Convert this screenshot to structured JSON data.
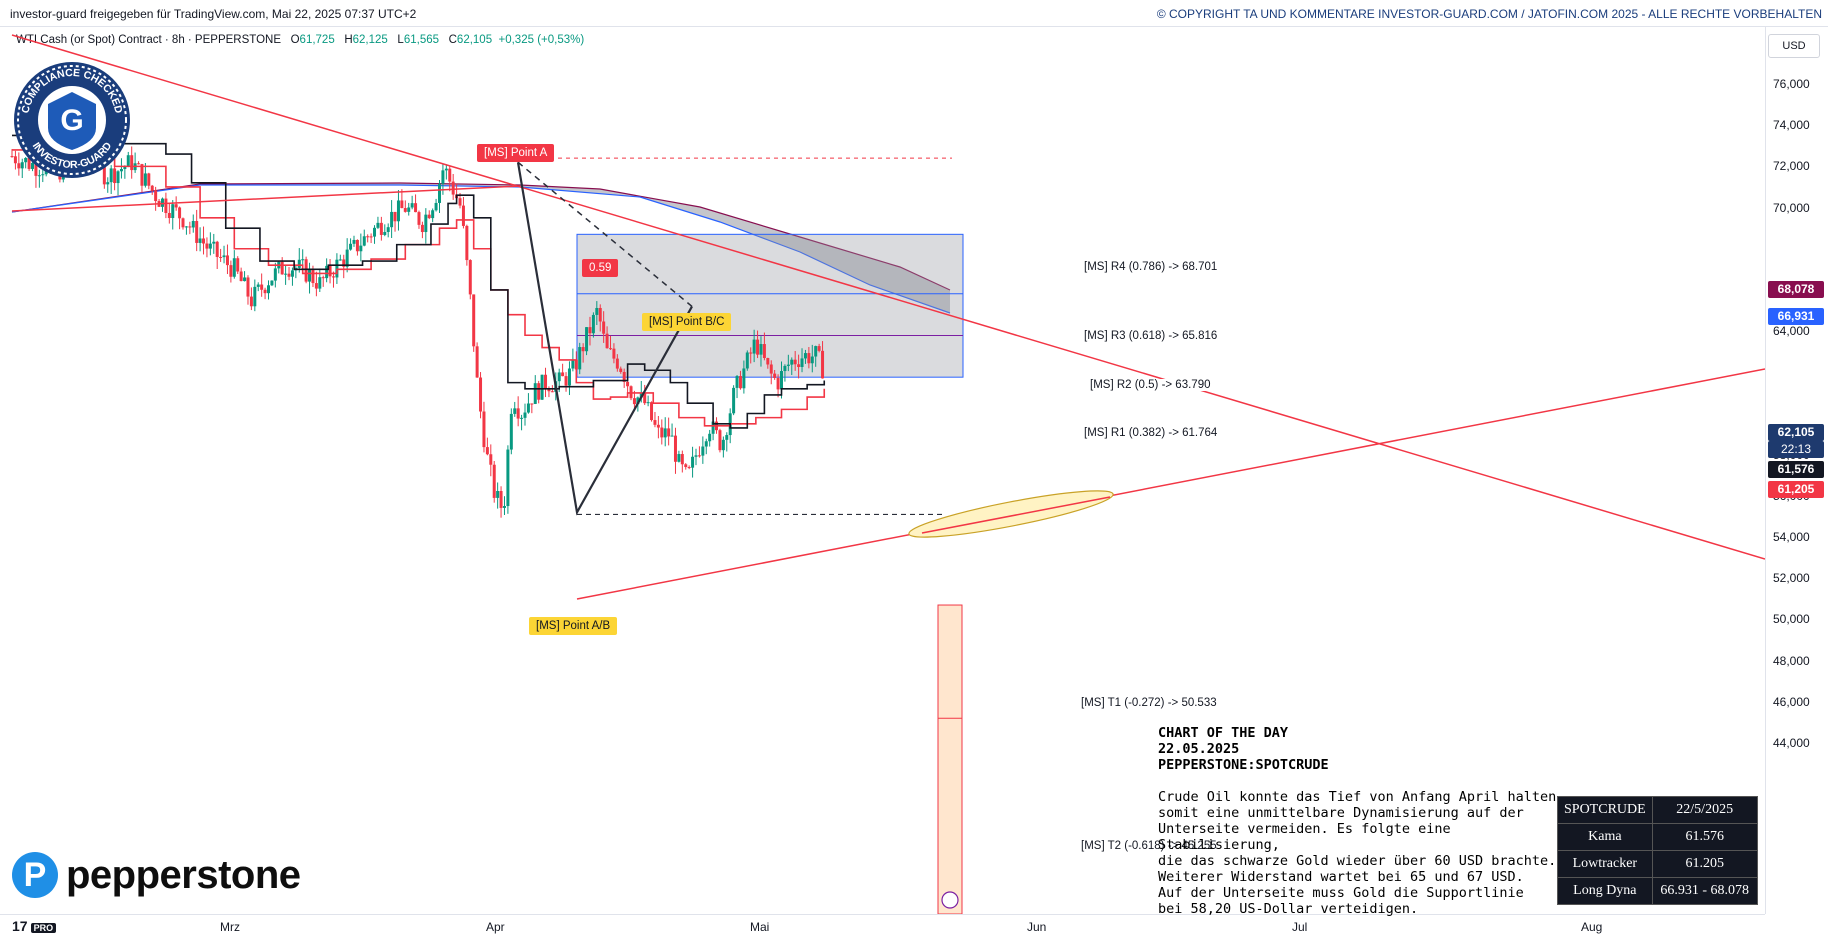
{
  "header": {
    "left": "investor-guard freigegeben für TradingView.com, Mai 22, 2025 07:37 UTC+2",
    "right": "© COPYRIGHT TA UND KOMMENTARE INVESTOR-GUARD.COM / JATOFIN.COM 2025 - ALLE RECHTE VORBEHALTEN"
  },
  "legend": {
    "symbol": "WTI Cash (or Spot) Contract · 8h · PEPPERSTONE",
    "o_label": "O",
    "o": "61,725",
    "h_label": "H",
    "h": "62,125",
    "l_label": "L",
    "l": "61,565",
    "c_label": "C",
    "c": "62,105",
    "chg": "+0,325 (+0,53%)"
  },
  "price_axis": {
    "currency": "USD",
    "ticks": [
      "76,000",
      "74,000",
      "72,000",
      "70,000",
      "66,000",
      "64,000",
      "58,000",
      "56,000",
      "54,000",
      "52,000",
      "50,000",
      "48,000",
      "46,000",
      "44,000"
    ],
    "labels": [
      {
        "value": "68,078",
        "color": "#880e4f"
      },
      {
        "value": "66,931",
        "color": "#2962ff"
      },
      {
        "value": "62,105",
        "color": "#1e3a6e"
      },
      {
        "value": "22:13",
        "color": "#1e3a6e"
      },
      {
        "value": "61,576",
        "color": "#131722"
      },
      {
        "value": "61,205",
        "color": "#f23645"
      }
    ]
  },
  "time_axis": {
    "ticks": [
      "Mrz",
      "Apr",
      "Mai",
      "Jun",
      "Jul",
      "Aug"
    ]
  },
  "annotations": {
    "point_a": "[MS] Point A",
    "point_bc": "[MS] Point B/C",
    "point_ab": "[MS] Point A/B",
    "ratio": "0.59",
    "r4": "[MS] R4 (0.786) -> 68.701",
    "r3": "[MS] R3 (0.618) -> 65.816",
    "r2": "[MS] R2 (0.5) -> 63.790",
    "r1": "[MS] R1 (0.382) -> 61.764",
    "t1": "[MS] T1 (-0.272) -> 50.533",
    "t2": "[MS] T2 (-0.618) -> 45.255"
  },
  "commentary": {
    "title": "CHART OF THE DAY",
    "date": "22.05.2025",
    "symbol": "PEPPERSTONE:SPOTCRUDE",
    "lines": [
      "Crude Oil konnte das Tief von Anfang April halten",
      "somit eine unmittelbare Dynamisierung auf der",
      "Unterseite vermeiden. Es folgte eine Stabilisierung,",
      "die das schwarze Gold wieder über 60 USD brachte.",
      "Weiterer Widerstand wartet bei 65 und 67 USD.",
      "Auf der Unterseite muss Gold die Supportlinie",
      "bei 58,20 US-Dollar verteidigen."
    ]
  },
  "info_table": {
    "rows": [
      [
        "SPOTCRUDE",
        "22/5/2025"
      ],
      [
        "Kama",
        "61.576"
      ],
      [
        "Lowtracker",
        "61.205"
      ],
      [
        "Long Dyna",
        "66.931 - 68.078"
      ]
    ]
  },
  "branding": {
    "pepperstone": "pepperstone",
    "pepperstone_mark": "P",
    "tv": "17",
    "tv_badge": "PRO",
    "seal_top": "COMPLIANCE CHECKED",
    "seal_bottom": "INVESTOR-GUARD",
    "seal_letter": "G"
  },
  "colors": {
    "up": "#089981",
    "down": "#f23645",
    "kama": "#131722",
    "lowtracker": "#f23645",
    "long_dyna_fill": "#9598a1",
    "fib_box": "#2962ff",
    "trend": "#f23645"
  },
  "chart_data": {
    "type": "line",
    "title": "WTI Cash (or Spot) Contract · 8h · PEPPERSTONE",
    "xlabel": "",
    "ylabel": "USD",
    "ylim": [
      42.5,
      77.5
    ],
    "x_ticks": [
      "Mrz",
      "Apr",
      "Mai",
      "Jun",
      "Jul",
      "Aug"
    ],
    "series": [
      {
        "name": "Kama",
        "last": 61.576,
        "points": [
          [
            0,
            73.5
          ],
          [
            60,
            73.4
          ],
          [
            120,
            73.1
          ],
          [
            180,
            72.6
          ],
          [
            210,
            71.2
          ],
          [
            250,
            69.0
          ],
          [
            290,
            67.4
          ],
          [
            330,
            67.0
          ],
          [
            370,
            67.2
          ],
          [
            410,
            67.4
          ],
          [
            450,
            68.2
          ],
          [
            490,
            69.2
          ],
          [
            510,
            70.2
          ],
          [
            520,
            70.6
          ],
          [
            540,
            69.5
          ],
          [
            560,
            66.0
          ],
          [
            580,
            61.5
          ],
          [
            600,
            61.2
          ],
          [
            640,
            61.3
          ],
          [
            680,
            61.6
          ],
          [
            720,
            62.4
          ],
          [
            740,
            62.1
          ],
          [
            770,
            61.5
          ],
          [
            790,
            60.5
          ],
          [
            820,
            59.5
          ],
          [
            840,
            59.3
          ],
          [
            860,
            60.0
          ],
          [
            880,
            60.9
          ],
          [
            900,
            61.2
          ],
          [
            930,
            61.4
          ],
          [
            950,
            61.6
          ]
        ]
      },
      {
        "name": "Lowtracker",
        "last": 61.205,
        "points": [
          [
            0,
            72.8
          ],
          [
            60,
            72.4
          ],
          [
            120,
            72.0
          ],
          [
            180,
            71.0
          ],
          [
            220,
            69.5
          ],
          [
            260,
            68.0
          ],
          [
            300,
            67.2
          ],
          [
            340,
            66.8
          ],
          [
            380,
            67.0
          ],
          [
            420,
            67.5
          ],
          [
            460,
            68.2
          ],
          [
            500,
            69.0
          ],
          [
            520,
            69.4
          ],
          [
            540,
            68.0
          ],
          [
            560,
            66.0
          ],
          [
            580,
            64.8
          ],
          [
            600,
            63.8
          ],
          [
            620,
            63.2
          ],
          [
            640,
            62.6
          ],
          [
            660,
            61.5
          ],
          [
            680,
            60.7
          ],
          [
            700,
            60.8
          ],
          [
            720,
            61.0
          ],
          [
            750,
            60.5
          ],
          [
            780,
            59.8
          ],
          [
            810,
            59.4
          ],
          [
            840,
            59.5
          ],
          [
            870,
            59.8
          ],
          [
            900,
            60.2
          ],
          [
            930,
            60.8
          ],
          [
            950,
            61.2
          ]
        ]
      },
      {
        "name": "Long Dyna",
        "range": [
          66.931,
          68.078
        ]
      }
    ],
    "ohlc_last": {
      "open": 61.725,
      "high": 62.125,
      "low": 61.565,
      "close": 62.105
    },
    "pivots": {
      "point_a": 72.2,
      "point_ab": 55.2,
      "point_bc": 65.2
    },
    "fib_levels": {
      "R4": 68.701,
      "R3": 65.816,
      "R2": 63.79,
      "R1": 61.764,
      "T1": 50.533,
      "T2": 45.255
    }
  }
}
